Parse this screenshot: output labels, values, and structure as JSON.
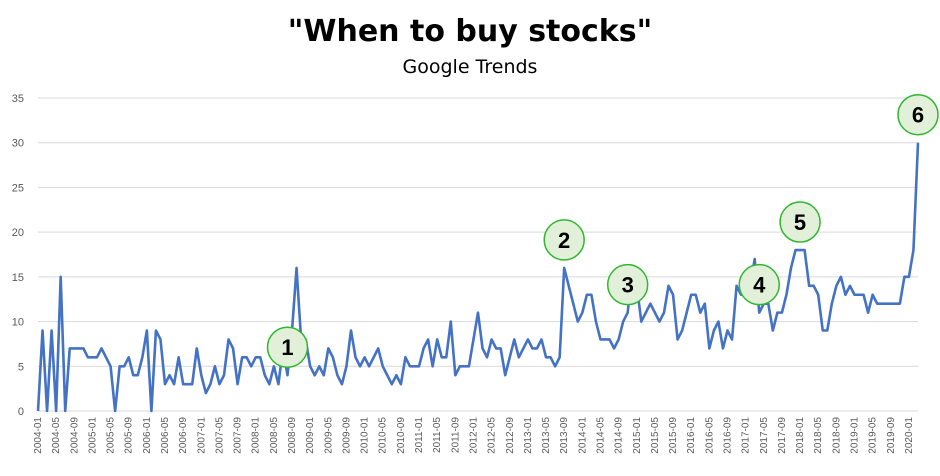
{
  "chart_data": {
    "type": "line",
    "title": "\"When to buy stocks\"",
    "subtitle": "Google Trends",
    "ylim": [
      0,
      35
    ],
    "yticks": [
      0,
      5,
      10,
      15,
      20,
      25,
      30,
      35
    ],
    "grid": true,
    "legend": "none",
    "xtick_labels": [
      "2004-01",
      "2004-05",
      "2004-09",
      "2005-01",
      "2005-05",
      "2005-09",
      "2006-01",
      "2006-05",
      "2006-09",
      "2007-01",
      "2007-05",
      "2007-09",
      "2008-01",
      "2008-05",
      "2008-09",
      "2009-01",
      "2009-05",
      "2009-09",
      "2010-01",
      "2010-05",
      "2010-09",
      "2011-01",
      "2011-05",
      "2011-09",
      "2012-01",
      "2012-05",
      "2012-09",
      "2013-01",
      "2013-05",
      "2013-09",
      "2014-01",
      "2014-05",
      "2014-09",
      "2015-01",
      "2015-05",
      "2015-09",
      "2016-01",
      "2016-05",
      "2016-09",
      "2017-01",
      "2017-05",
      "2017-09",
      "2018-01",
      "2018-05",
      "2018-09",
      "2019-01",
      "2019-05",
      "2019-09",
      "2020-01"
    ],
    "start": "2004-01",
    "values": [
      0,
      9,
      0,
      9,
      0,
      15,
      0,
      7,
      7,
      7,
      7,
      6,
      6,
      6,
      7,
      6,
      5,
      0,
      5,
      5,
      6,
      4,
      4,
      6,
      9,
      0,
      9,
      8,
      3,
      4,
      3,
      6,
      3,
      3,
      3,
      7,
      4,
      2,
      3,
      5,
      3,
      4,
      8,
      7,
      3,
      6,
      6,
      5,
      6,
      6,
      4,
      3,
      5,
      3,
      7,
      4,
      9,
      16,
      8,
      8,
      5,
      4,
      5,
      4,
      7,
      6,
      4,
      3,
      5,
      9,
      6,
      5,
      6,
      5,
      6,
      7,
      5,
      4,
      3,
      4,
      3,
      6,
      5,
      5,
      5,
      7,
      8,
      5,
      8,
      6,
      6,
      10,
      4,
      5,
      5,
      5,
      8,
      11,
      7,
      6,
      8,
      7,
      7,
      4,
      6,
      8,
      6,
      7,
      8,
      7,
      7,
      8,
      6,
      6,
      5,
      6,
      16,
      14,
      12,
      10,
      11,
      13,
      13,
      10,
      8,
      8,
      8,
      7,
      8,
      10,
      11,
      16,
      14,
      10,
      11,
      12,
      11,
      10,
      11,
      14,
      13,
      8,
      9,
      11,
      13,
      13,
      11,
      12,
      7,
      9,
      10,
      7,
      9,
      8,
      14,
      13,
      13,
      14,
      17,
      11,
      12,
      12,
      9,
      11,
      11,
      13,
      16,
      18,
      18,
      18,
      14,
      14,
      13,
      9,
      9,
      12,
      14,
      15,
      13,
      14,
      13,
      13,
      13,
      11,
      13,
      12,
      12,
      12,
      12,
      12,
      12,
      15,
      15,
      18,
      30
    ],
    "annotations": [
      {
        "label": "1",
        "at": "2008-08"
      },
      {
        "label": "2",
        "at": "2013-09"
      },
      {
        "label": "3",
        "at": "2014-11"
      },
      {
        "label": "4",
        "at": "2017-04"
      },
      {
        "label": "5",
        "at": "2018-01"
      },
      {
        "label": "6",
        "at": "2020-03"
      }
    ],
    "colors": {
      "series": "#4472c4",
      "annotation_fill": "#e2f0d9",
      "annotation_stroke": "#2eb82e",
      "grid": "#d9d9d9"
    }
  }
}
